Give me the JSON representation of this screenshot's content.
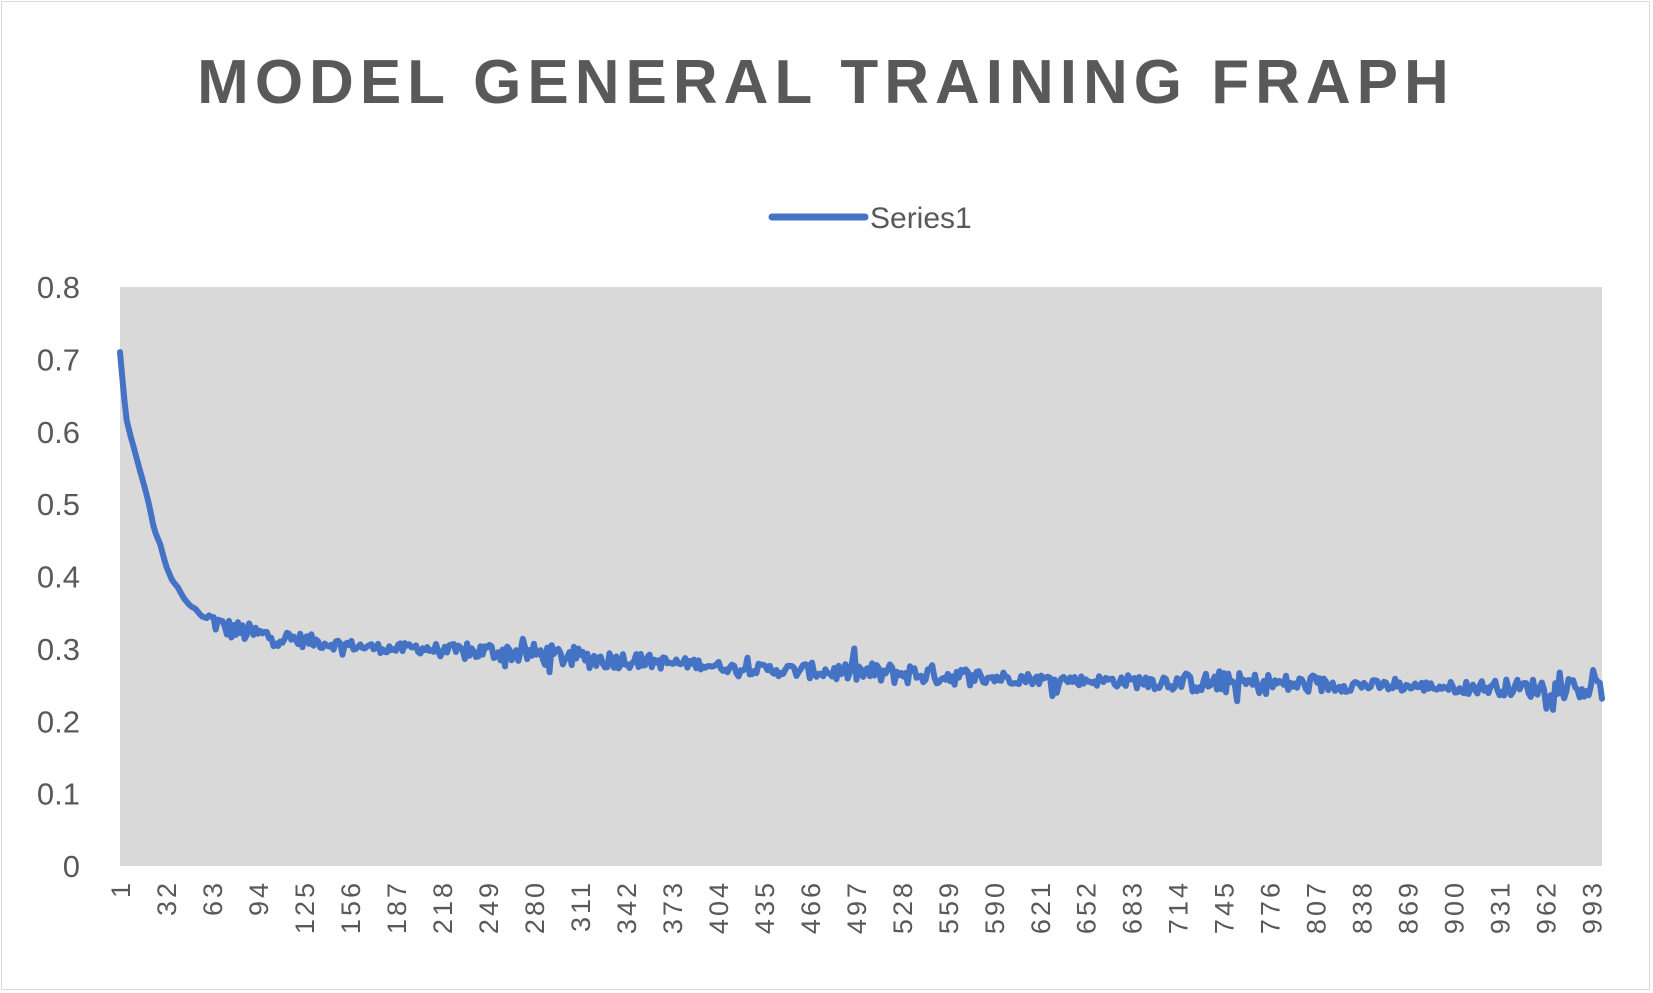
{
  "chart_data": {
    "type": "line",
    "title": "MODEL GENERAL TRAINING FRAPH",
    "xlabel": "",
    "ylabel": "",
    "ylim": [
      0,
      0.8
    ],
    "yticks": [
      "0",
      "0.1",
      "0.2",
      "0.3",
      "0.4",
      "0.5",
      "0.6",
      "0.7",
      "0.8"
    ],
    "xlim": [
      1,
      1000
    ],
    "xticks": [
      "1",
      "32",
      "63",
      "94",
      "125",
      "156",
      "187",
      "218",
      "249",
      "280",
      "311",
      "342",
      "373",
      "404",
      "435",
      "466",
      "497",
      "528",
      "559",
      "590",
      "621",
      "652",
      "683",
      "714",
      "745",
      "776",
      "807",
      "838",
      "869",
      "900",
      "931",
      "962",
      "993"
    ],
    "legend": {
      "position": "top-center"
    },
    "plot_background": "#d9d9d9",
    "grid": false,
    "series": [
      {
        "name": "Series1",
        "color": "#4472c4",
        "x": [
          1,
          3,
          5,
          8,
          12,
          16,
          20,
          24,
          28,
          32,
          36,
          40,
          44,
          48,
          52,
          56,
          63,
          70,
          80,
          94,
          110,
          125,
          140,
          156,
          170,
          187,
          200,
          218,
          235,
          249,
          265,
          280,
          295,
          311,
          326,
          342,
          357,
          373,
          388,
          404,
          420,
          435,
          450,
          466,
          481,
          497,
          512,
          528,
          543,
          559,
          575,
          590,
          605,
          621,
          636,
          652,
          668,
          683,
          698,
          714,
          729,
          745,
          760,
          776,
          791,
          807,
          822,
          838,
          853,
          869,
          884,
          900,
          915,
          931,
          946,
          962,
          977,
          993,
          1000
        ],
        "y": [
          0.71,
          0.665,
          0.62,
          0.595,
          0.565,
          0.535,
          0.505,
          0.465,
          0.445,
          0.415,
          0.395,
          0.385,
          0.37,
          0.36,
          0.355,
          0.345,
          0.34,
          0.33,
          0.325,
          0.32,
          0.315,
          0.312,
          0.308,
          0.305,
          0.302,
          0.3,
          0.302,
          0.298,
          0.295,
          0.297,
          0.295,
          0.293,
          0.29,
          0.288,
          0.285,
          0.285,
          0.283,
          0.28,
          0.28,
          0.276,
          0.272,
          0.272,
          0.27,
          0.27,
          0.268,
          0.268,
          0.266,
          0.266,
          0.265,
          0.263,
          0.262,
          0.26,
          0.26,
          0.258,
          0.258,
          0.256,
          0.256,
          0.255,
          0.255,
          0.254,
          0.253,
          0.253,
          0.252,
          0.252,
          0.251,
          0.25,
          0.25,
          0.25,
          0.249,
          0.248,
          0.248,
          0.247,
          0.247,
          0.247,
          0.246,
          0.246,
          0.246,
          0.245,
          0.245
        ]
      }
    ]
  }
}
